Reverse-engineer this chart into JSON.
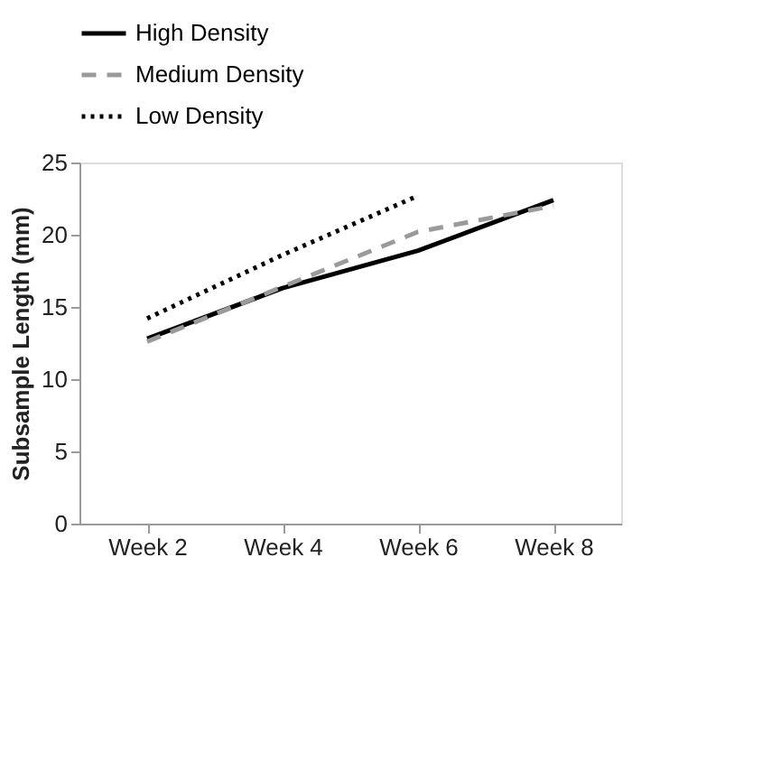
{
  "chart_data": {
    "type": "line",
    "ylabel": "Subsample Length (mm)",
    "categories": [
      "Week 2",
      "Week 4",
      "Week 6",
      "Week 8"
    ],
    "series": [
      {
        "name": "High Density",
        "color": "#000000",
        "line_style": "solid",
        "values": [
          12.8,
          16.3,
          18.9,
          22.4
        ]
      },
      {
        "name": "Medium Density",
        "color": "#9a9a9a",
        "line_style": "dashed",
        "values": [
          12.6,
          16.4,
          20.2,
          22.0
        ]
      },
      {
        "name": "Low Density",
        "color": "#000000",
        "line_style": "dotted",
        "values": [
          14.2,
          18.6,
          22.7,
          null
        ]
      }
    ],
    "ylim": [
      0,
      25
    ],
    "yticks": [
      0,
      5,
      10,
      15,
      20,
      25
    ],
    "grid": false,
    "legend": "top",
    "marker": "none"
  }
}
